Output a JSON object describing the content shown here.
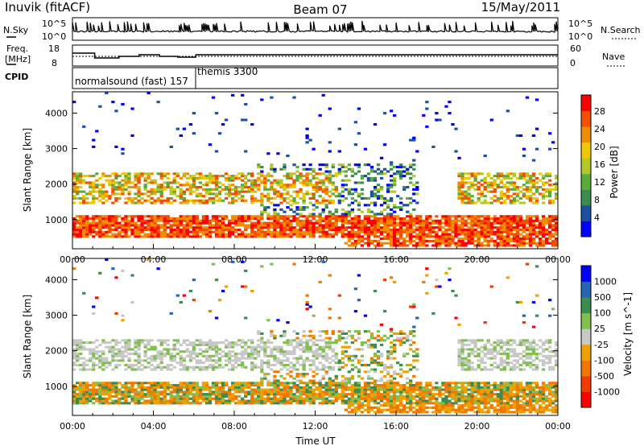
{
  "header": {
    "title": "Inuvik (fitACF)",
    "beam": "Beam 07",
    "date": "15/May/2011"
  },
  "panels": {
    "nsky": {
      "label": "N.Sky",
      "tick_top": "10^5",
      "tick_bottom": "10^0",
      "right_tick_top": "10^5",
      "right_tick_bottom": "10^0",
      "right_label": "N.Search"
    },
    "freq": {
      "label_line1": "Freq.",
      "label_line2": "[MHz]",
      "tick_top": "18",
      "tick_bottom": "8",
      "right_tick_top": "60",
      "right_tick_bottom": "0",
      "right_label": "Nave"
    },
    "cpid": {
      "label": "CPID",
      "segments": [
        "normalsound (fast) 157",
        "themis 3300"
      ]
    }
  },
  "colors": {
    "power_scale": [
      "#0000ff",
      "#1e50a0",
      "#3c8c50",
      "#5aaa3c",
      "#b4c828",
      "#f0c800",
      "#f08c00",
      "#f05000",
      "#ff0000"
    ],
    "velocity_scale": [
      "#0000ff",
      "#2864b4",
      "#3c8c50",
      "#82be50",
      "#c8c8c8",
      "#f0a000",
      "#f07800",
      "#f03c00",
      "#ff0000"
    ]
  },
  "chart_data": [
    {
      "type": "heatmap",
      "title": "",
      "xlabel": "",
      "ylabel": "Slant Range [km]",
      "x_ticks": [
        "00:00",
        "04:00",
        "08:00",
        "12:00",
        "16:00",
        "20:00",
        "00:00"
      ],
      "y_ticks": [
        1000,
        2000,
        3000,
        4000
      ],
      "ylim": [
        180,
        4600
      ],
      "colorbar": {
        "label": "Power [dB]",
        "ticks": [
          4,
          8,
          12,
          16,
          20,
          24,
          28
        ]
      }
    },
    {
      "type": "heatmap",
      "title": "",
      "xlabel": "Time UT",
      "ylabel": "Slant Range [km]",
      "x_ticks": [
        "00:00",
        "04:00",
        "08:00",
        "12:00",
        "16:00",
        "20:00",
        "00:00"
      ],
      "y_ticks": [
        1000,
        2000,
        3000,
        4000
      ],
      "ylim": [
        180,
        4600
      ],
      "colorbar": {
        "label": "Velocity [m s^-1]",
        "ticks": [
          "1000",
          "500",
          "100",
          "25",
          "-25",
          "-100",
          "-500",
          "-1000"
        ]
      }
    }
  ]
}
